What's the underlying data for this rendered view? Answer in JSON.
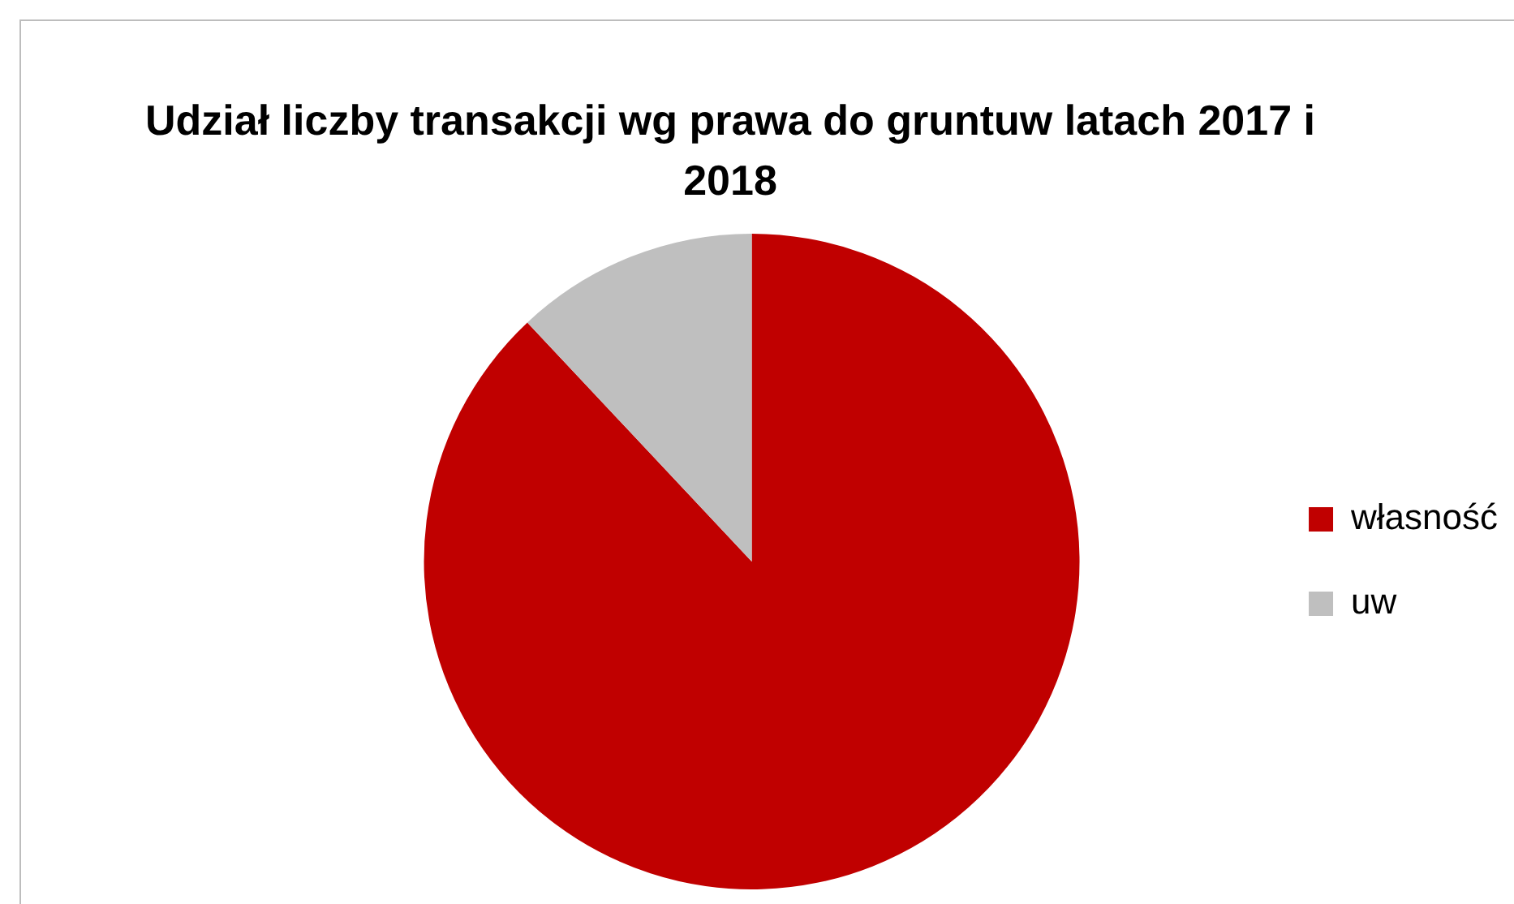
{
  "chart_data": {
    "type": "pie",
    "title": "Udział liczby transakcji wg prawa do gruntuw latach 2017 i 2018",
    "categories": [
      "własność",
      "uw"
    ],
    "values": [
      88,
      12
    ],
    "colors": [
      "#c00000",
      "#bfbfbf"
    ],
    "legend": "right"
  }
}
